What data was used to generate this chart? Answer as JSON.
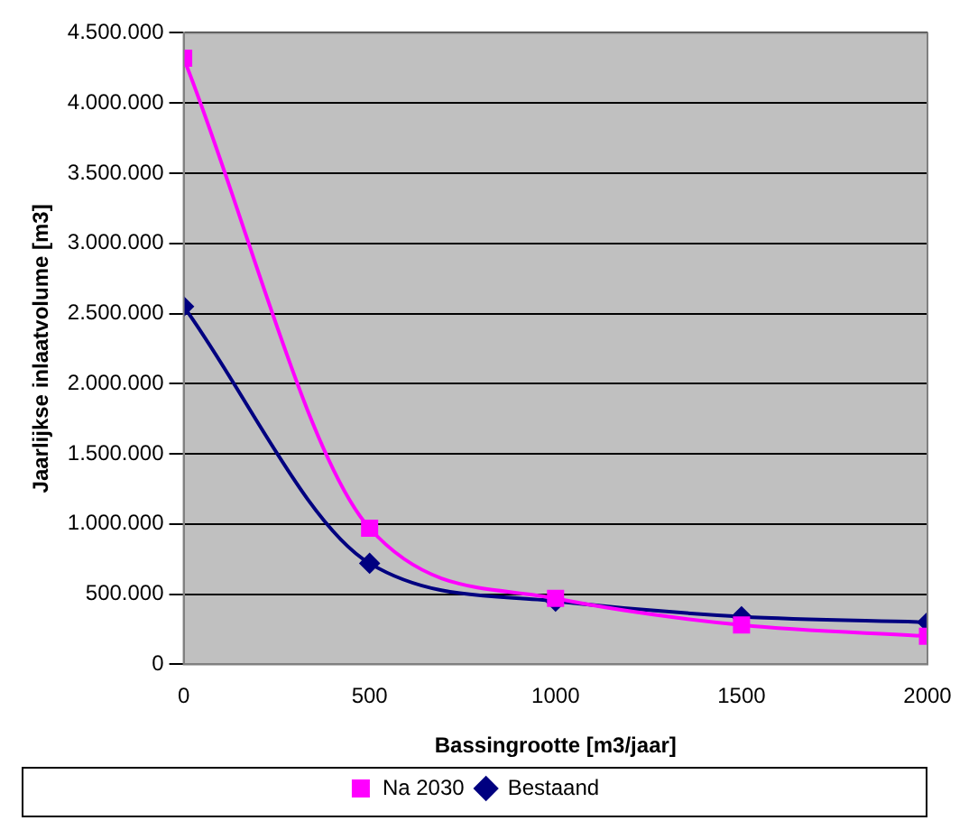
{
  "chart_data": {
    "type": "line",
    "xlabel": "Bassingrootte [m3/jaar]",
    "ylabel": "Jaarlijkse inlaatvolume [m3]",
    "x": [
      0,
      500,
      1000,
      1500,
      2000
    ],
    "series": [
      {
        "name": "Bestaand",
        "color": "#000080",
        "marker": "diamond",
        "values": [
          2550000,
          720000,
          450000,
          340000,
          300000
        ]
      },
      {
        "name": "Na 2030",
        "color": "#ff00ff",
        "marker": "square",
        "values": [
          4320000,
          970000,
          470000,
          280000,
          200000
        ]
      }
    ],
    "xlim": [
      0,
      2000
    ],
    "xticks": [
      0,
      500,
      1000,
      1500,
      2000
    ],
    "ylim": [
      0,
      4500000
    ],
    "yticks": [
      {
        "value": 0,
        "label": "0"
      },
      {
        "value": 500000,
        "label": "500.000"
      },
      {
        "value": 1000000,
        "label": "1.000.000"
      },
      {
        "value": 1500000,
        "label": "1.500.000"
      },
      {
        "value": 2000000,
        "label": "2.000.000"
      },
      {
        "value": 2500000,
        "label": "2.500.000"
      },
      {
        "value": 3000000,
        "label": "3.000.000"
      },
      {
        "value": 3500000,
        "label": "3.500.000"
      },
      {
        "value": 4000000,
        "label": "4.000.000"
      },
      {
        "value": 4500000,
        "label": "4.500.000"
      }
    ],
    "grid": "y",
    "legend": "bottom",
    "line_style": "solid"
  }
}
